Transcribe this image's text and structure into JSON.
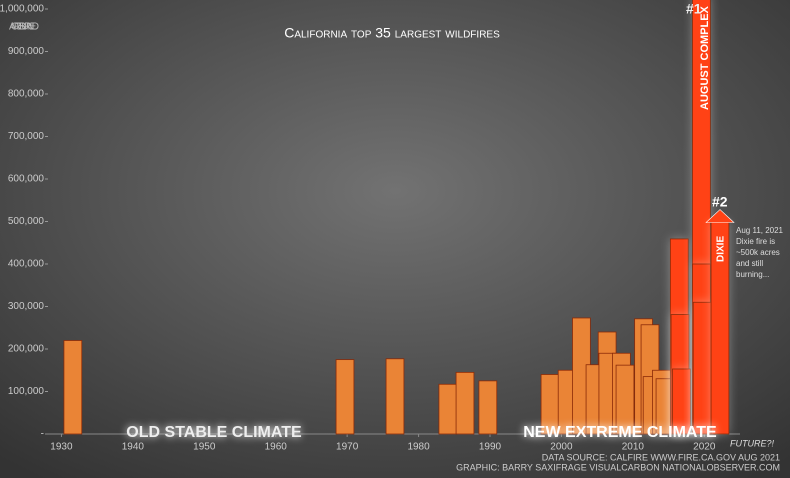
{
  "chart_data": {
    "type": "bar",
    "title": "California top 35 largest wildfires",
    "y_label": "ACRES BURNED",
    "x": [
      1931.6,
      1969.7,
      1976.7,
      1984.1,
      1986.5,
      1989.7,
      1998.4,
      2000.8,
      2002.8,
      2006.4,
      2004.7,
      2006.5,
      2008.4,
      2008.9,
      2011.5,
      2012.4,
      2012.7,
      2014.0,
      2014.5,
      2016.5,
      2016.6,
      2016.8,
      2019.6,
      2019.6,
      2019.7,
      2022.2
    ],
    "values": [
      220000,
      175000,
      177000,
      117000,
      145000,
      125000,
      140000,
      150000,
      273000,
      240000,
      163000,
      190000,
      190000,
      162000,
      271000,
      257000,
      135000,
      150000,
      130000,
      459000,
      281000,
      153000,
      1032000,
      400000,
      310000,
      500000
    ],
    "colors": [
      "#ea8436",
      "#ea8436",
      "#ea8436",
      "#ea8436",
      "#ea8436",
      "#ea8436",
      "#ea8436",
      "#ea8436",
      "#ea8436",
      "#ea8436",
      "#ea8436",
      "#ea8436",
      "#ea8436",
      "#ea8436",
      "#ea8436",
      "#ea8436",
      "#ea8436",
      "#ea8436",
      "#ea8436",
      "#ff4215",
      "#ff4215",
      "#ff4215",
      "#ff4215",
      "#ff4215",
      "#ff4215",
      "#ff4215"
    ],
    "xlim": [
      1927,
      2032
    ],
    "xticks": [
      1930,
      1940,
      1950,
      1960,
      1970,
      1980,
      1990,
      2000,
      2010,
      2020
    ],
    "ylim": [
      0,
      1000000
    ],
    "yticks": [
      {
        "value": 0,
        "label": "-"
      },
      {
        "value": 100000,
        "label": "100,000"
      },
      {
        "value": 200000,
        "label": "200,000"
      },
      {
        "value": 300000,
        "label": "300,000"
      },
      {
        "value": 400000,
        "label": "400,000"
      },
      {
        "value": 500000,
        "label": "500,000"
      },
      {
        "value": 600000,
        "label": "600,000"
      },
      {
        "value": 700000,
        "label": "700,000"
      },
      {
        "value": 800000,
        "label": "800,000"
      },
      {
        "value": 900000,
        "label": "900,000"
      },
      {
        "value": 1000000,
        "label": "1,000,000"
      }
    ],
    "annotations": [
      "#1",
      "AUGUST COMPLEX",
      "#2",
      "DIXIE",
      "Aug 11, 2021",
      "Dixie fire is",
      "~500k acres",
      "and still",
      "burning...",
      "OLD STABLE CLIMATE",
      "NEW EXTREME CLIMATE",
      "FUTURE?!"
    ],
    "source": [
      "DATA SOURCE: CALFIRE WWW.FIRE.CA.GOV AUG 2021",
      "GRAPHIC: BARRY SAXIFRAGE VISUALCARBON NATIONALOBSERVER.COM"
    ]
  }
}
